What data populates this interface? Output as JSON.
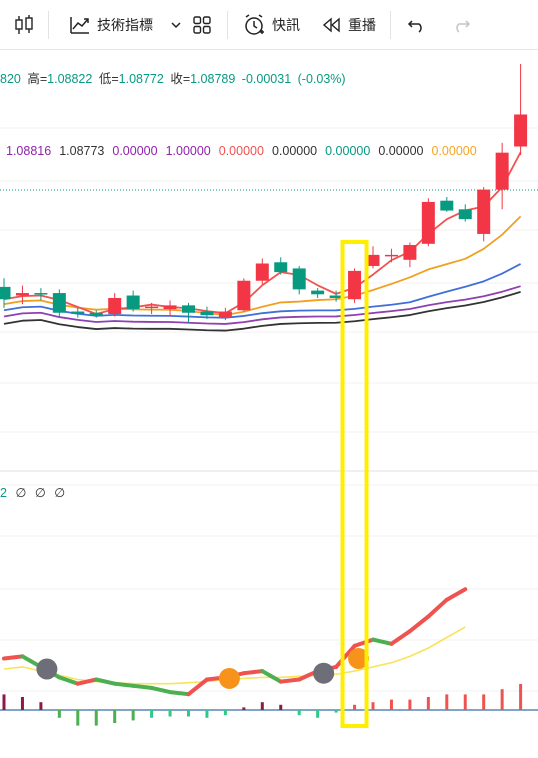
{
  "toolbar": {
    "indicators_label": "技術指標",
    "flash_label": "快訊",
    "replay_label": "重播"
  },
  "legend": {
    "open_value": "820",
    "high_label": "高=",
    "high_value": "1.08822",
    "low_label": "低=",
    "low_value": "1.08772",
    "close_label": "收=",
    "close_value": "1.08789",
    "change": "-0.00031",
    "change_pct": "(-0.03%)"
  },
  "ma_values": [
    {
      "text": "1.08816",
      "color": "#8e24aa"
    },
    {
      "text": "1.08773",
      "color": "#333333"
    },
    {
      "text": "0.00000",
      "color": "#8e24aa"
    },
    {
      "text": "1.00000",
      "color": "#8e24aa"
    },
    {
      "text": "0.00000",
      "color": "#ef5350"
    },
    {
      "text": "0.00000",
      "color": "#333333"
    },
    {
      "text": "0.00000",
      "color": "#089981"
    },
    {
      "text": "0.00000",
      "color": "#333333"
    },
    {
      "text": "0.00000",
      "color": "#f5a623"
    }
  ],
  "indicator": {
    "values": [
      "2",
      "∅",
      "∅",
      "∅"
    ]
  },
  "colors": {
    "up": "#f23645",
    "down": "#089981",
    "ma_red": "#ef5350",
    "ma_orange": "#f0a020",
    "ma_blue": "#3f6fd8",
    "ma_purple": "#8e3fb0",
    "ma_dark": "#333333",
    "macd_red": "#ef5350",
    "macd_green": "#4caf50",
    "signal_yellow": "#f7e45a",
    "highlight": "#ffee00",
    "cross_gray": "#6e6e78",
    "cross_orange": "#f7931a"
  },
  "chart_data": {
    "type": "candlestick",
    "candles": [
      {
        "o": 1.08755,
        "h": 1.08762,
        "l": 1.08738,
        "c": 1.08745
      },
      {
        "o": 1.08748,
        "h": 1.08756,
        "l": 1.08741,
        "c": 1.0875
      },
      {
        "o": 1.0875,
        "h": 1.08754,
        "l": 1.08744,
        "c": 1.08749
      },
      {
        "o": 1.0875,
        "h": 1.08753,
        "l": 1.0873,
        "c": 1.08734
      },
      {
        "o": 1.08735,
        "h": 1.08738,
        "l": 1.0873,
        "c": 1.08733
      },
      {
        "o": 1.08734,
        "h": 1.08736,
        "l": 1.0873,
        "c": 1.08732
      },
      {
        "o": 1.08733,
        "h": 1.0875,
        "l": 1.08731,
        "c": 1.08746
      },
      {
        "o": 1.08748,
        "h": 1.08752,
        "l": 1.08735,
        "c": 1.08737
      },
      {
        "o": 1.08738,
        "h": 1.08742,
        "l": 1.08733,
        "c": 1.08739
      },
      {
        "o": 1.08737,
        "h": 1.08744,
        "l": 1.08731,
        "c": 1.0874
      },
      {
        "o": 1.0874,
        "h": 1.08742,
        "l": 1.08726,
        "c": 1.08734
      },
      {
        "o": 1.08735,
        "h": 1.08739,
        "l": 1.08729,
        "c": 1.08732
      },
      {
        "o": 1.0873,
        "h": 1.08738,
        "l": 1.08728,
        "c": 1.08735
      },
      {
        "o": 1.08736,
        "h": 1.08762,
        "l": 1.08735,
        "c": 1.0876
      },
      {
        "o": 1.0876,
        "h": 1.08778,
        "l": 1.08757,
        "c": 1.08774
      },
      {
        "o": 1.08775,
        "h": 1.08779,
        "l": 1.08765,
        "c": 1.08767
      },
      {
        "o": 1.0877,
        "h": 1.08772,
        "l": 1.08749,
        "c": 1.08753
      },
      {
        "o": 1.08752,
        "h": 1.08754,
        "l": 1.08746,
        "c": 1.08749
      },
      {
        "o": 1.08748,
        "h": 1.08752,
        "l": 1.08743,
        "c": 1.08746
      },
      {
        "o": 1.08745,
        "h": 1.0877,
        "l": 1.08742,
        "c": 1.08768
      },
      {
        "o": 1.08772,
        "h": 1.08788,
        "l": 1.0877,
        "c": 1.08781
      },
      {
        "o": 1.08781,
        "h": 1.08786,
        "l": 1.08775,
        "c": 1.08781
      },
      {
        "o": 1.08777,
        "h": 1.08791,
        "l": 1.08771,
        "c": 1.08789
      },
      {
        "o": 1.0879,
        "h": 1.08827,
        "l": 1.08788,
        "c": 1.08824
      },
      {
        "o": 1.08825,
        "h": 1.08828,
        "l": 1.08816,
        "c": 1.08817
      },
      {
        "o": 1.08818,
        "h": 1.08822,
        "l": 1.08808,
        "c": 1.0881
      },
      {
        "o": 1.08798,
        "h": 1.08836,
        "l": 1.08792,
        "c": 1.08834
      },
      {
        "o": 1.08834,
        "h": 1.08872,
        "l": 1.08818,
        "c": 1.08864
      },
      {
        "o": 1.08869,
        "h": 1.08936,
        "l": 1.08862,
        "c": 1.08895
      }
    ],
    "macd_hist": [
      0.6,
      0.5,
      0.3,
      -0.3,
      -0.6,
      -0.6,
      -0.5,
      -0.4,
      -0.3,
      -0.25,
      -0.25,
      -0.3,
      -0.2,
      0.1,
      0.3,
      0.2,
      -0.2,
      -0.3,
      -0.1,
      0.2,
      0.3,
      0.4,
      0.4,
      0.5,
      0.6,
      0.6,
      0.6,
      0.8,
      1.0
    ],
    "macd_line": [
      1.5,
      1.6,
      1.1,
      0.6,
      0.3,
      0.5,
      0.3,
      0.2,
      0.1,
      -0.1,
      -0.2,
      0.5,
      0.6,
      0.8,
      0.9,
      0.4,
      0.5,
      0.9,
      1.1,
      2.1,
      2.4,
      2.2,
      2.8,
      3.5,
      4.3,
      4.8
    ],
    "signal_line": [
      1.0,
      1.1,
      0.9,
      0.7,
      0.5,
      0.4,
      0.35,
      0.3,
      0.3,
      0.3,
      0.35,
      0.4,
      0.5,
      0.55,
      0.6,
      0.6,
      0.65,
      0.7,
      0.75,
      0.9,
      1.1,
      1.3,
      1.6,
      2.0,
      2.5,
      3.0
    ],
    "crosses": [
      {
        "index": 2,
        "color": "gray"
      },
      {
        "index": 12,
        "color": "orange"
      },
      {
        "index": 17,
        "color": "gray"
      },
      {
        "index": 19,
        "color": "orange"
      }
    ],
    "highlight_index": 19
  }
}
